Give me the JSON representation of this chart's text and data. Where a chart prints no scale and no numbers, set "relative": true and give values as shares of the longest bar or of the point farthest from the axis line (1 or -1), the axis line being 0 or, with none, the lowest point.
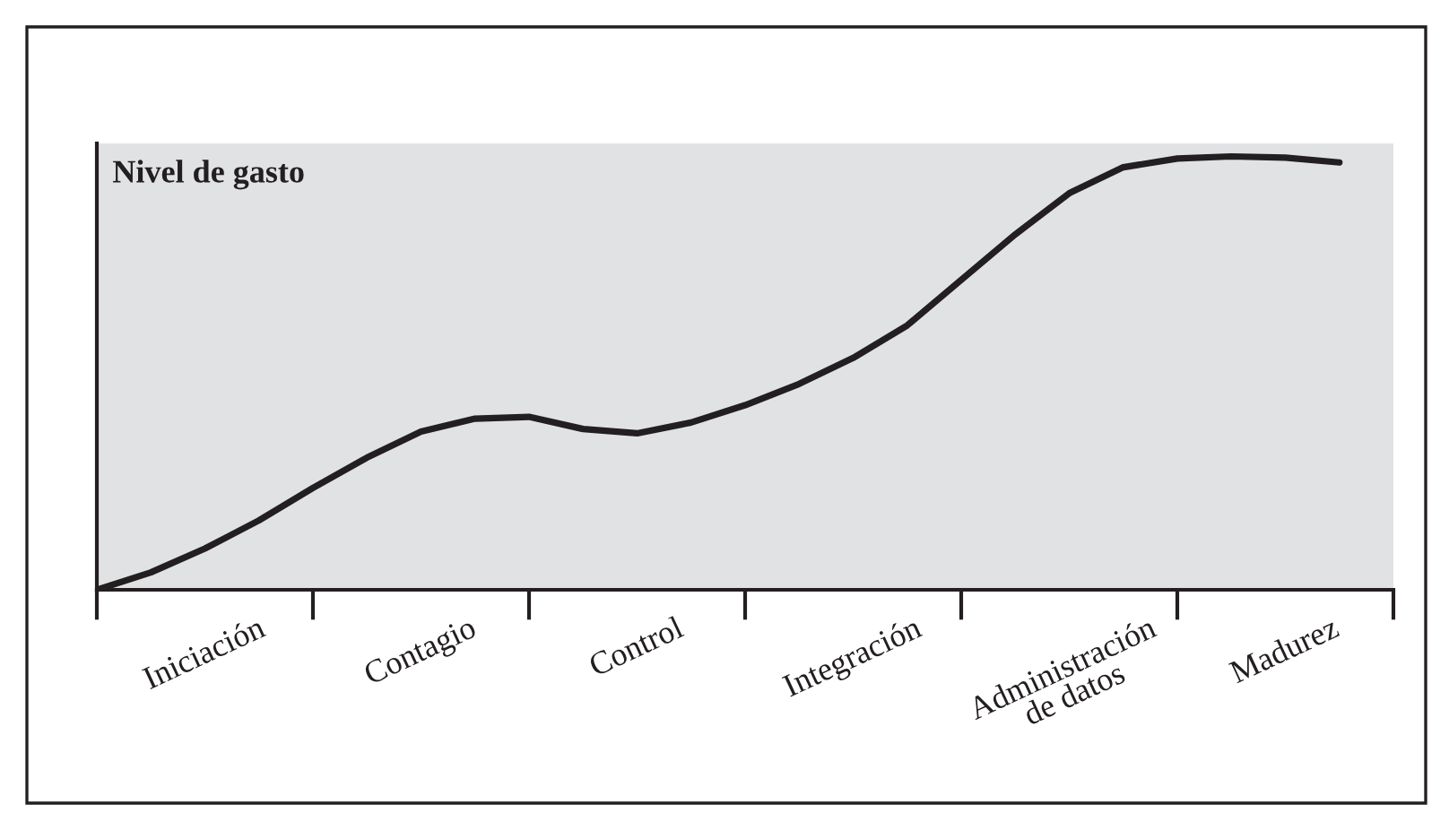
{
  "chart_data": {
    "type": "line",
    "relative": true,
    "ylabel": "Nivel de gasto",
    "categories": [
      null,
      null,
      "Iniciación",
      null,
      null,
      null,
      "Contagio",
      null,
      null,
      null,
      "Control",
      null,
      null,
      null,
      "Integración",
      null,
      null,
      null,
      "Administración\nde datos",
      null,
      null,
      null,
      "Madurez",
      null
    ],
    "series": [
      {
        "color": "#231f20",
        "values": [
          0,
          0.04,
          0.095,
          0.16,
          0.235,
          0.305,
          0.365,
          0.395,
          0.399,
          0.371,
          0.361,
          0.386,
          0.426,
          0.475,
          0.535,
          0.61,
          0.715,
          0.82,
          0.915,
          0.975,
          0.995,
          1.0,
          0.997,
          0.986
        ]
      }
    ],
    "grid": false,
    "legend": false,
    "marker": "none",
    "line_style": "solid"
  }
}
